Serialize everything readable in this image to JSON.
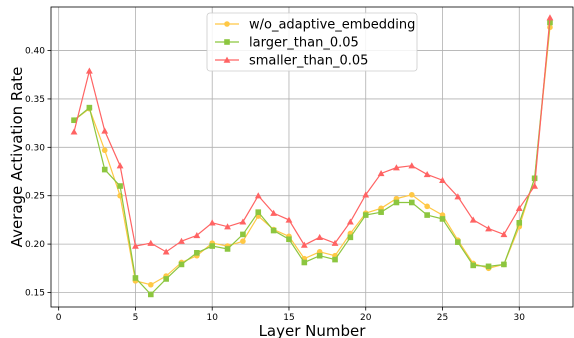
{
  "chart_data": {
    "type": "line",
    "xlabel": "Layer Number",
    "ylabel": "Average Activation Rate",
    "xlim": [
      -0.5,
      33.5
    ],
    "ylim": [
      0.135,
      0.445
    ],
    "xticks": [
      0,
      5,
      10,
      15,
      20,
      25,
      30
    ],
    "yticks": [
      0.15,
      0.2,
      0.25,
      0.3,
      0.35,
      0.4
    ],
    "ytick_labels": [
      "0.15",
      "0.20",
      "0.25",
      "0.30",
      "0.35",
      "0.40"
    ],
    "grid": true,
    "legend_position": "top-center",
    "x": [
      1,
      2,
      3,
      4,
      5,
      6,
      7,
      8,
      9,
      10,
      11,
      12,
      13,
      14,
      15,
      16,
      17,
      18,
      19,
      20,
      21,
      22,
      23,
      24,
      25,
      26,
      27,
      28,
      29,
      30,
      31,
      32
    ],
    "series": [
      {
        "name": "w/o_adaptive_embedding",
        "color": "#ffc845",
        "marker": "circle",
        "values": [
          0.328,
          0.34,
          0.297,
          0.25,
          0.162,
          0.158,
          0.167,
          0.181,
          0.188,
          0.201,
          0.198,
          0.203,
          0.229,
          0.215,
          0.208,
          0.185,
          0.192,
          0.188,
          0.211,
          0.232,
          0.237,
          0.247,
          0.251,
          0.239,
          0.23,
          0.204,
          0.18,
          0.175,
          0.179,
          0.218,
          0.268,
          0.424
        ]
      },
      {
        "name": "larger_than_0.05",
        "color": "#8cc63f",
        "marker": "square",
        "values": [
          0.328,
          0.341,
          0.277,
          0.26,
          0.165,
          0.148,
          0.164,
          0.179,
          0.191,
          0.198,
          0.195,
          0.21,
          0.233,
          0.214,
          0.205,
          0.181,
          0.188,
          0.184,
          0.207,
          0.23,
          0.233,
          0.243,
          0.243,
          0.23,
          0.226,
          0.202,
          0.178,
          0.177,
          0.179,
          0.222,
          0.268,
          0.429
        ]
      },
      {
        "name": "smaller_than_0.05",
        "color": "#ff6363",
        "marker": "triangle",
        "values": [
          0.316,
          0.379,
          0.317,
          0.281,
          0.198,
          0.201,
          0.192,
          0.203,
          0.209,
          0.222,
          0.218,
          0.223,
          0.25,
          0.232,
          0.225,
          0.199,
          0.207,
          0.201,
          0.223,
          0.251,
          0.273,
          0.279,
          0.281,
          0.272,
          0.266,
          0.249,
          0.225,
          0.216,
          0.21,
          0.237,
          0.26,
          0.434
        ]
      }
    ]
  }
}
